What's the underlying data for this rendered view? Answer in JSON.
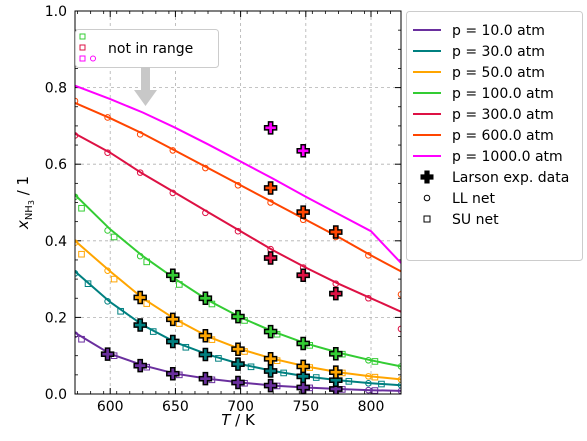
{
  "chart_data": {
    "type": "line",
    "xlabel_italic": "T",
    "xlabel_unit": " / K",
    "ylabel_main": "x",
    "ylabel_sub": "NH",
    "ylabel_sub2": "3",
    "ylabel_unit": " / 1",
    "xlim": [
      573,
      823
    ],
    "ylim": [
      0.0,
      1.0
    ],
    "xticks": [
      600,
      650,
      700,
      750,
      800
    ],
    "xtick_labels": [
      "600",
      "650",
      "700",
      "750",
      "800"
    ],
    "yticks": [
      0.0,
      0.2,
      0.4,
      0.6,
      0.8,
      1.0
    ],
    "ytick_labels": [
      "0.0",
      "0.2",
      "0.4",
      "0.6",
      "0.8",
      "1.0"
    ],
    "grid": true,
    "legend_position": "outside-right",
    "annotation": {
      "text": "not in range",
      "arrow": true,
      "markers_colors": [
        "#33cc33",
        "#dd1144",
        "#ff00ff"
      ]
    },
    "series": [
      {
        "name": "p = 10.0 atm",
        "color": "#6a2f9e",
        "curve": [
          [
            573,
            0.16
          ],
          [
            600,
            0.105
          ],
          [
            625,
            0.075
          ],
          [
            650,
            0.053
          ],
          [
            675,
            0.04
          ],
          [
            700,
            0.03
          ],
          [
            725,
            0.022
          ],
          [
            750,
            0.017
          ],
          [
            775,
            0.013
          ],
          [
            800,
            0.01
          ],
          [
            823,
            0.008
          ]
        ],
        "ll": [
          [
            573,
            0.155
          ],
          [
            598,
            0.108
          ],
          [
            623,
            0.076
          ],
          [
            648,
            0.054
          ],
          [
            673,
            0.04
          ],
          [
            698,
            0.03
          ],
          [
            723,
            0.022
          ],
          [
            748,
            0.017
          ],
          [
            773,
            0.013
          ],
          [
            798,
            0.01
          ],
          [
            823,
            0.008
          ]
        ],
        "su": [
          [
            578,
            0.143
          ],
          [
            603,
            0.1
          ],
          [
            628,
            0.07
          ],
          [
            653,
            0.05
          ],
          [
            678,
            0.037
          ],
          [
            703,
            0.028
          ],
          [
            728,
            0.021
          ],
          [
            753,
            0.016
          ],
          [
            778,
            0.012
          ],
          [
            803,
            0.009
          ]
        ],
        "larson": [
          [
            598,
            0.104
          ],
          [
            623,
            0.074
          ],
          [
            648,
            0.053
          ],
          [
            673,
            0.04
          ],
          [
            698,
            0.03
          ],
          [
            723,
            0.022
          ],
          [
            748,
            0.017
          ],
          [
            773,
            0.013
          ]
        ]
      },
      {
        "name": "p = 30.0 atm",
        "color": "#008080",
        "curve": [
          [
            573,
            0.32
          ],
          [
            600,
            0.24
          ],
          [
            625,
            0.18
          ],
          [
            650,
            0.135
          ],
          [
            675,
            0.103
          ],
          [
            700,
            0.078
          ],
          [
            725,
            0.06
          ],
          [
            750,
            0.046
          ],
          [
            775,
            0.036
          ],
          [
            800,
            0.028
          ],
          [
            823,
            0.023
          ]
        ],
        "ll": [
          [
            573,
            0.315
          ],
          [
            598,
            0.242
          ],
          [
            623,
            0.18
          ],
          [
            648,
            0.136
          ],
          [
            673,
            0.102
          ],
          [
            698,
            0.078
          ],
          [
            723,
            0.06
          ],
          [
            748,
            0.046
          ],
          [
            773,
            0.036
          ],
          [
            798,
            0.028
          ],
          [
            823,
            0.023
          ]
        ],
        "su": [
          [
            583,
            0.288
          ],
          [
            608,
            0.216
          ],
          [
            633,
            0.163
          ],
          [
            658,
            0.122
          ],
          [
            683,
            0.093
          ],
          [
            708,
            0.071
          ],
          [
            733,
            0.055
          ],
          [
            758,
            0.043
          ],
          [
            783,
            0.033
          ],
          [
            808,
            0.026
          ]
        ],
        "larson": [
          [
            623,
            0.18
          ],
          [
            648,
            0.137
          ],
          [
            673,
            0.103
          ],
          [
            698,
            0.078
          ],
          [
            723,
            0.06
          ],
          [
            748,
            0.046
          ],
          [
            773,
            0.036
          ]
        ]
      },
      {
        "name": "p = 50.0 atm",
        "color": "#ffa500",
        "curve": [
          [
            573,
            0.4
          ],
          [
            600,
            0.32
          ],
          [
            625,
            0.25
          ],
          [
            650,
            0.195
          ],
          [
            675,
            0.15
          ],
          [
            700,
            0.117
          ],
          [
            725,
            0.092
          ],
          [
            750,
            0.072
          ],
          [
            775,
            0.057
          ],
          [
            800,
            0.046
          ],
          [
            823,
            0.038
          ]
        ],
        "ll": [
          [
            573,
            0.395
          ],
          [
            598,
            0.322
          ],
          [
            623,
            0.252
          ],
          [
            648,
            0.196
          ],
          [
            673,
            0.151
          ],
          [
            698,
            0.117
          ],
          [
            723,
            0.092
          ],
          [
            748,
            0.072
          ],
          [
            773,
            0.057
          ],
          [
            798,
            0.046
          ],
          [
            823,
            0.038
          ]
        ],
        "su": [
          [
            578,
            0.365
          ],
          [
            603,
            0.3
          ],
          [
            628,
            0.236
          ],
          [
            653,
            0.184
          ],
          [
            678,
            0.142
          ],
          [
            703,
            0.111
          ],
          [
            728,
            0.087
          ],
          [
            753,
            0.069
          ],
          [
            778,
            0.055
          ],
          [
            803,
            0.044
          ]
        ],
        "larson": [
          [
            623,
            0.252
          ],
          [
            648,
            0.195
          ],
          [
            673,
            0.152
          ],
          [
            698,
            0.117
          ],
          [
            723,
            0.092
          ],
          [
            748,
            0.072
          ],
          [
            773,
            0.057
          ]
        ]
      },
      {
        "name": "p = 100.0 atm",
        "color": "#33cc33",
        "curve": [
          [
            573,
            0.52
          ],
          [
            600,
            0.43
          ],
          [
            625,
            0.36
          ],
          [
            650,
            0.3
          ],
          [
            675,
            0.245
          ],
          [
            700,
            0.2
          ],
          [
            725,
            0.163
          ],
          [
            750,
            0.132
          ],
          [
            775,
            0.108
          ],
          [
            800,
            0.088
          ],
          [
            823,
            0.072
          ]
        ],
        "ll": [
          [
            573,
            0.515
          ],
          [
            598,
            0.427
          ],
          [
            623,
            0.36
          ],
          [
            648,
            0.3
          ],
          [
            673,
            0.245
          ],
          [
            698,
            0.2
          ],
          [
            723,
            0.163
          ],
          [
            748,
            0.132
          ],
          [
            773,
            0.108
          ],
          [
            798,
            0.088
          ],
          [
            823,
            0.072
          ]
        ],
        "su": [
          [
            578,
            0.485
          ],
          [
            603,
            0.41
          ],
          [
            628,
            0.345
          ],
          [
            653,
            0.286
          ],
          [
            678,
            0.235
          ],
          [
            703,
            0.192
          ],
          [
            728,
            0.156
          ],
          [
            753,
            0.127
          ],
          [
            778,
            0.104
          ],
          [
            803,
            0.085
          ]
        ],
        "larson": [
          [
            648,
            0.31
          ],
          [
            673,
            0.25
          ],
          [
            698,
            0.202
          ],
          [
            723,
            0.163
          ],
          [
            748,
            0.132
          ],
          [
            773,
            0.105
          ]
        ]
      },
      {
        "name": "p = 300.0 atm",
        "color": "#dd1144",
        "curve": [
          [
            573,
            0.68
          ],
          [
            600,
            0.63
          ],
          [
            625,
            0.575
          ],
          [
            650,
            0.525
          ],
          [
            675,
            0.475
          ],
          [
            700,
            0.425
          ],
          [
            725,
            0.375
          ],
          [
            750,
            0.33
          ],
          [
            775,
            0.288
          ],
          [
            800,
            0.25
          ],
          [
            823,
            0.215
          ]
        ],
        "ll": [
          [
            573,
            0.675
          ],
          [
            598,
            0.63
          ],
          [
            623,
            0.578
          ],
          [
            648,
            0.525
          ],
          [
            673,
            0.473
          ],
          [
            698,
            0.425
          ],
          [
            723,
            0.378
          ],
          [
            748,
            0.33
          ],
          [
            773,
            0.288
          ],
          [
            798,
            0.25
          ],
          [
            823,
            0.17
          ]
        ],
        "su": [],
        "larson": [
          [
            723,
            0.355
          ],
          [
            748,
            0.31
          ],
          [
            773,
            0.262
          ]
        ]
      },
      {
        "name": "p = 600.0 atm",
        "color": "#ff4500",
        "curve": [
          [
            573,
            0.76
          ],
          [
            600,
            0.72
          ],
          [
            625,
            0.68
          ],
          [
            650,
            0.635
          ],
          [
            675,
            0.59
          ],
          [
            700,
            0.545
          ],
          [
            725,
            0.5
          ],
          [
            750,
            0.455
          ],
          [
            775,
            0.41
          ],
          [
            800,
            0.362
          ],
          [
            823,
            0.32
          ]
        ],
        "ll": [
          [
            573,
            0.765
          ],
          [
            598,
            0.722
          ],
          [
            623,
            0.678
          ],
          [
            648,
            0.636
          ],
          [
            673,
            0.59
          ],
          [
            698,
            0.545
          ],
          [
            723,
            0.5
          ],
          [
            748,
            0.455
          ],
          [
            773,
            0.41
          ],
          [
            798,
            0.362
          ],
          [
            823,
            0.26
          ]
        ],
        "su": [],
        "larson": [
          [
            723,
            0.538
          ],
          [
            748,
            0.475
          ],
          [
            773,
            0.423
          ]
        ]
      },
      {
        "name": "p = 1000.0 atm",
        "color": "#ff00ff",
        "curve": [
          [
            573,
            0.805
          ],
          [
            600,
            0.77
          ],
          [
            625,
            0.735
          ],
          [
            650,
            0.695
          ],
          [
            675,
            0.652
          ],
          [
            700,
            0.607
          ],
          [
            725,
            0.562
          ],
          [
            750,
            0.515
          ],
          [
            775,
            0.47
          ],
          [
            800,
            0.425
          ],
          [
            823,
            0.342
          ]
        ],
        "ll": [],
        "su": [],
        "larson": [
          [
            723,
            0.695
          ],
          [
            748,
            0.635
          ]
        ]
      }
    ],
    "legend_markers": {
      "larson": "Larson exp. data",
      "ll": "LL net",
      "su": "SU net"
    }
  }
}
